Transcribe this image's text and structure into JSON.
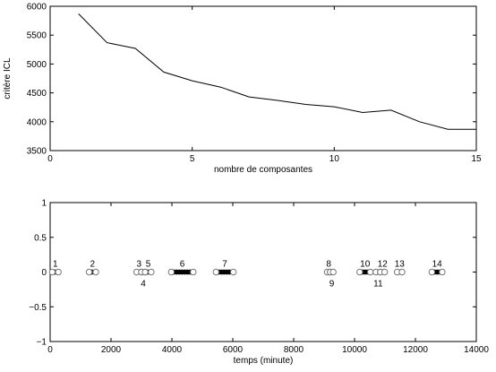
{
  "chart_data": [
    {
      "type": "line",
      "xlabel": "nombre de composantes",
      "ylabel": "critère ICL",
      "xlim": [
        0,
        15
      ],
      "ylim": [
        3500,
        6000
      ],
      "xticks": [
        0,
        5,
        10,
        15
      ],
      "yticks": [
        3500,
        4000,
        4500,
        5000,
        5500,
        6000
      ],
      "x": [
        1,
        2,
        3,
        4,
        5,
        6,
        7,
        8,
        9,
        10,
        11,
        12,
        13,
        14,
        15
      ],
      "series": [
        {
          "values": [
            5870,
            5370,
            5270,
            4860,
            4710,
            4600,
            4430,
            4370,
            4300,
            4260,
            4160,
            4200,
            4000,
            3870,
            3870
          ]
        }
      ],
      "line_color": "#000000"
    },
    {
      "type": "scatter",
      "xlabel": "temps (minute)",
      "xlim": [
        0,
        14000
      ],
      "ylim": [
        -1,
        1
      ],
      "xticks": [
        0,
        2000,
        4000,
        6000,
        8000,
        10000,
        12000,
        14000
      ],
      "yticks": [
        -1,
        -0.5,
        0,
        0.5,
        1
      ],
      "ytick_labels": [
        "−1",
        "−0.5",
        "0",
        "0.5",
        "1"
      ],
      "segments": [
        {
          "label": "1",
          "start": 70,
          "end": 270,
          "label_pos": "above"
        },
        {
          "label": "2",
          "start": 1280,
          "end": 1500,
          "label_pos": "above"
        },
        {
          "label": "3",
          "start": 2840,
          "end": 3000,
          "label_pos": "above"
        },
        {
          "label": "4",
          "start": 3000,
          "end": 3120,
          "label_pos": "below"
        },
        {
          "label": "5",
          "start": 3120,
          "end": 3320,
          "label_pos": "above"
        },
        {
          "label": "6",
          "start": 3980,
          "end": 4700,
          "label_pos": "above"
        },
        {
          "label": "7",
          "start": 5450,
          "end": 6020,
          "label_pos": "above"
        },
        {
          "label": "8",
          "start": 9100,
          "end": 9200,
          "label_pos": "above"
        },
        {
          "label": "9",
          "start": 9200,
          "end": 9300,
          "label_pos": "below"
        },
        {
          "label": "10",
          "start": 10170,
          "end": 10520,
          "label_pos": "above"
        },
        {
          "label": "11",
          "start": 10700,
          "end": 10850,
          "label_pos": "below"
        },
        {
          "label": "12",
          "start": 10850,
          "end": 10990,
          "label_pos": "above"
        },
        {
          "label": "13",
          "start": 11400,
          "end": 11560,
          "label_pos": "above"
        },
        {
          "label": "14",
          "start": 12540,
          "end": 12880,
          "label_pos": "above"
        }
      ],
      "marker_color": "#000000"
    }
  ]
}
